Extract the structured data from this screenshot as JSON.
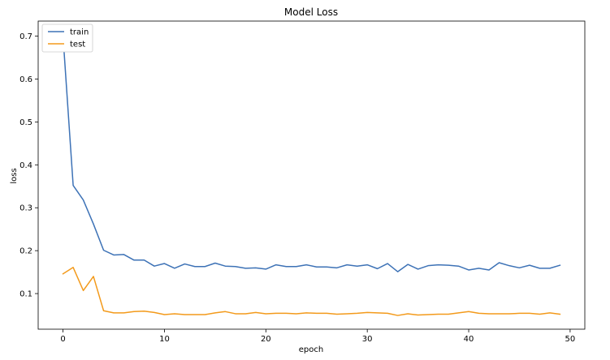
{
  "chart_data": {
    "type": "line",
    "title": "Model Loss",
    "xlabel": "epoch",
    "ylabel": "loss",
    "xlim": [
      -2.45,
      51.45
    ],
    "ylim": [
      0.017,
      0.735
    ],
    "xticks": [
      0,
      10,
      20,
      30,
      40,
      50
    ],
    "yticks": [
      0.1,
      0.2,
      0.3,
      0.4,
      0.5,
      0.6,
      0.7
    ],
    "grid": false,
    "legend_position": "top-left",
    "x": [
      0,
      1,
      2,
      3,
      4,
      5,
      6,
      7,
      8,
      9,
      10,
      11,
      12,
      13,
      14,
      15,
      16,
      17,
      18,
      19,
      20,
      21,
      22,
      23,
      24,
      25,
      26,
      27,
      28,
      29,
      30,
      31,
      32,
      33,
      34,
      35,
      36,
      37,
      38,
      39,
      40,
      41,
      42,
      43,
      44,
      45,
      46,
      47,
      48,
      49
    ],
    "series": [
      {
        "name": "train",
        "color": "#3d72b6",
        "values": [
          0.7,
          0.352,
          0.318,
          0.262,
          0.201,
          0.19,
          0.191,
          0.178,
          0.178,
          0.164,
          0.17,
          0.159,
          0.169,
          0.163,
          0.163,
          0.171,
          0.164,
          0.163,
          0.159,
          0.16,
          0.157,
          0.167,
          0.163,
          0.163,
          0.167,
          0.162,
          0.162,
          0.16,
          0.167,
          0.164,
          0.167,
          0.158,
          0.17,
          0.151,
          0.168,
          0.157,
          0.165,
          0.167,
          0.166,
          0.164,
          0.155,
          0.159,
          0.155,
          0.172,
          0.165,
          0.16,
          0.166,
          0.159,
          0.159,
          0.166
        ]
      },
      {
        "name": "test",
        "color": "#f39a1b",
        "values": [
          0.146,
          0.161,
          0.107,
          0.14,
          0.06,
          0.055,
          0.055,
          0.058,
          0.059,
          0.056,
          0.051,
          0.053,
          0.051,
          0.051,
          0.051,
          0.055,
          0.058,
          0.053,
          0.053,
          0.056,
          0.053,
          0.054,
          0.054,
          0.053,
          0.055,
          0.054,
          0.054,
          0.052,
          0.053,
          0.054,
          0.056,
          0.055,
          0.054,
          0.049,
          0.053,
          0.05,
          0.051,
          0.052,
          0.052,
          0.055,
          0.058,
          0.054,
          0.053,
          0.053,
          0.053,
          0.054,
          0.054,
          0.052,
          0.055,
          0.052
        ]
      }
    ]
  }
}
